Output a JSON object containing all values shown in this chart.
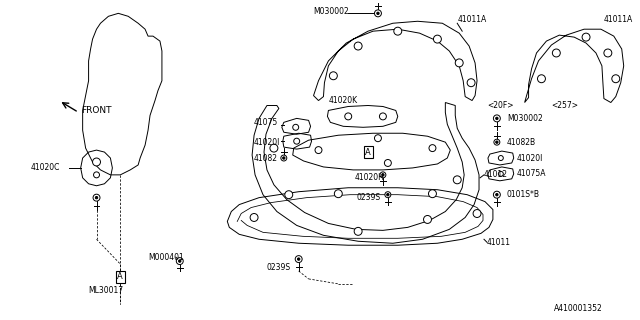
{
  "bg_color": "#ffffff",
  "line_color": "#000000",
  "fig_id": "A410001352",
  "lw": 0.7,
  "font_size": 5.5,
  "labels": {
    "front": "FRONT",
    "41020C": "41020C",
    "ML30017": "ML30017",
    "M000401": "M000401",
    "41075": "41075",
    "41020K": "41020K",
    "41020I_l": "41020I",
    "41082": "41082",
    "M030002_top": "M030002",
    "41012": "41012",
    "41011A_l": "41011A",
    "41011A_r": "41011A",
    "20F": "<20F>",
    "257": "<257>",
    "M030002_r": "M030002",
    "41082B": "41082B",
    "41020I_r": "41020I",
    "41075A": "41075A",
    "41020H": "41020H",
    "0239S_m": "0239S",
    "0101S_B": "0101S*B",
    "41011": "41011",
    "0239S_b": "0239S",
    "A_box1": "A",
    "A_box2": "A"
  }
}
